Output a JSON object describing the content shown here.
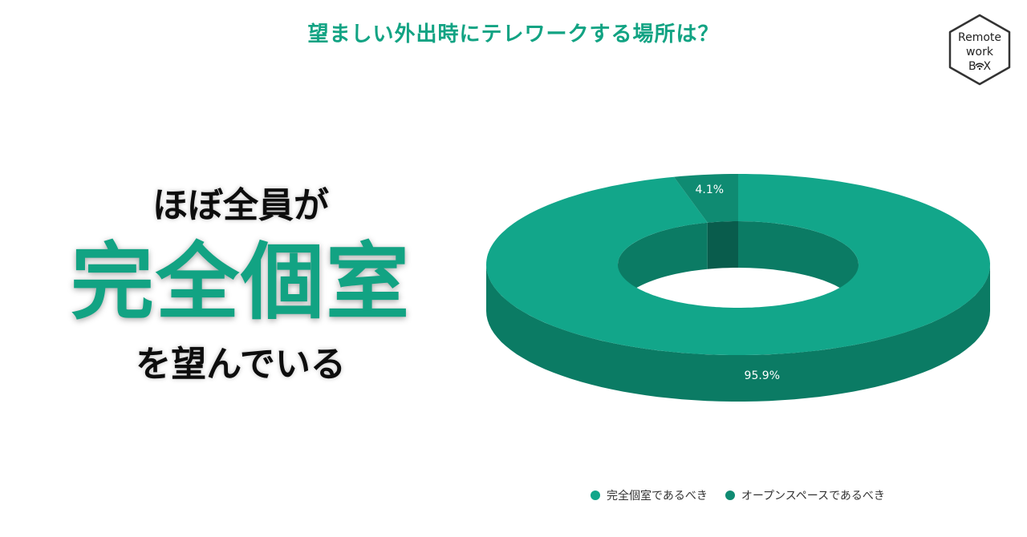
{
  "header": {
    "title": "望ましい外出時にテレワークする場所は？"
  },
  "logo": {
    "line1": "Remote",
    "line2": "work",
    "line3": "B  X",
    "icon": "wifi-icon"
  },
  "lead": {
    "line1": "ほぼ全員が",
    "line2": "完全個室",
    "line3": "を望んでいる"
  },
  "chart_data": {
    "type": "pie",
    "title": "望ましい外出時にテレワークする場所は？",
    "donut": true,
    "legend_position": "bottom",
    "slices": [
      {
        "label": "完全個室であるべき",
        "value": 95.9,
        "value_label": "95.9%",
        "color": "#12a68a",
        "side_color": "#0b7b64"
      },
      {
        "label": "オープンスペースであるべき",
        "value": 4.1,
        "value_label": "4.1%",
        "color": "#0f8b72",
        "side_color": "#095c4c"
      }
    ]
  }
}
